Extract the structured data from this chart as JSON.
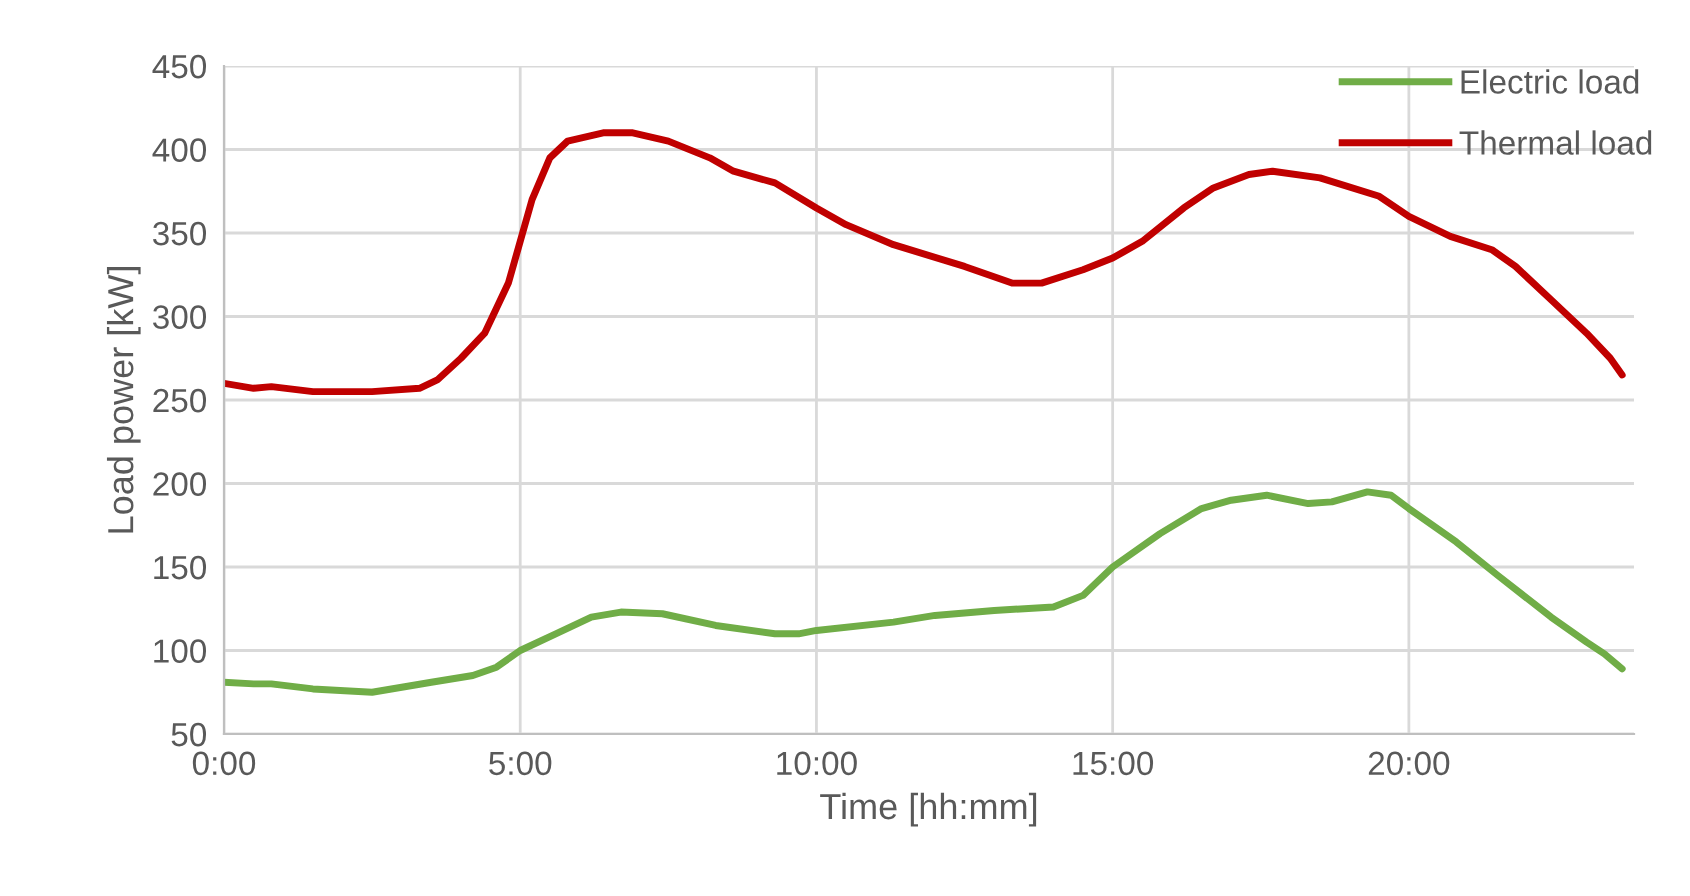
{
  "chart_data": {
    "type": "line",
    "xlabel": "Time [hh:mm]",
    "ylabel": "Load power [kW]",
    "xlim": [
      0,
      23.8
    ],
    "xticks": [
      {
        "value": 0,
        "label": "0:00"
      },
      {
        "value": 5,
        "label": "5:00"
      },
      {
        "value": 10,
        "label": "10:00"
      },
      {
        "value": 15,
        "label": "15:00"
      },
      {
        "value": 20,
        "label": "20:00"
      }
    ],
    "ylim": [
      50,
      450
    ],
    "yticks": [
      50,
      100,
      150,
      200,
      250,
      300,
      350,
      400,
      450
    ],
    "grid": true,
    "legend": "top right",
    "marker": "none",
    "line_style": "solid",
    "series": [
      {
        "name": "Electric load",
        "color": "#70ad47",
        "x": [
          0,
          0.5,
          0.8,
          1.5,
          2.5,
          3.0,
          3.5,
          4.2,
          4.6,
          5.0,
          5.6,
          6.2,
          6.7,
          7.4,
          8.3,
          9.3,
          9.7,
          10.0,
          11.3,
          12.0,
          13.0,
          14.0,
          14.5,
          15.0,
          15.8,
          16.5,
          17.0,
          17.6,
          18.3,
          18.7,
          19.3,
          19.7,
          20.0,
          20.8,
          21.5,
          22.4,
          23.0,
          23.3,
          23.6
        ],
        "values": [
          81,
          80,
          80,
          77,
          75,
          78,
          81,
          85,
          90,
          100,
          110,
          120,
          123,
          122,
          115,
          110,
          110,
          112,
          117,
          121,
          124,
          126,
          133,
          150,
          170,
          185,
          190,
          193,
          188,
          189,
          195,
          193,
          185,
          165,
          145,
          120,
          105,
          98,
          89
        ]
      },
      {
        "name": "Thermal load",
        "color": "#c00000",
        "x": [
          0,
          0.5,
          0.8,
          1.5,
          2.5,
          3.3,
          3.6,
          4.0,
          4.4,
          4.8,
          5.2,
          5.5,
          5.8,
          6.4,
          6.9,
          7.5,
          8.2,
          8.6,
          9.3,
          10.0,
          10.5,
          11.3,
          12.5,
          13.3,
          13.8,
          14.5,
          15.0,
          15.5,
          16.2,
          16.7,
          17.3,
          17.7,
          18.5,
          19.5,
          20.0,
          20.7,
          21.4,
          21.8,
          22.4,
          23.0,
          23.4,
          23.6
        ],
        "values": [
          260,
          257,
          258,
          255,
          255,
          257,
          262,
          275,
          290,
          320,
          370,
          395,
          405,
          410,
          410,
          405,
          395,
          387,
          380,
          365,
          355,
          343,
          330,
          320,
          320,
          328,
          335,
          345,
          365,
          377,
          385,
          387,
          383,
          372,
          360,
          348,
          340,
          330,
          310,
          290,
          275,
          265
        ]
      }
    ]
  }
}
